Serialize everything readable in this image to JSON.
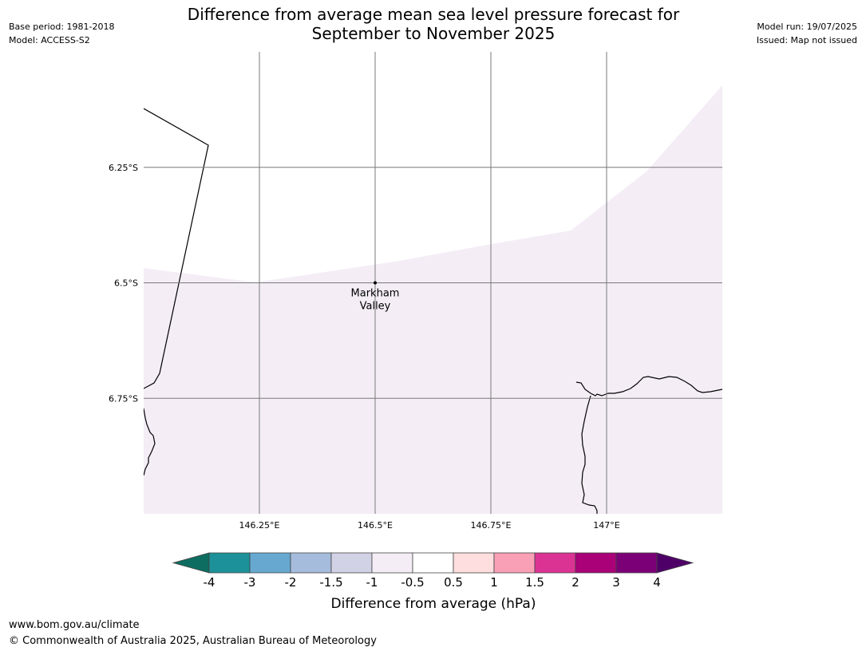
{
  "header": {
    "title_line1": "Difference from average mean sea level pressure forecast for",
    "title_line2": "September to November 2025",
    "base_period": "Base period: 1981-2018",
    "model": "Model: ACCESS-S2",
    "model_run": "Model run: 19/07/2025",
    "issued": "Issued: Map not issued"
  },
  "map": {
    "lat_labels": [
      "6.25°S",
      "6.5°S",
      "6.75°S"
    ],
    "lon_labels": [
      "146.25°E",
      "146.5°E",
      "146.75°E",
      "147°E"
    ],
    "lat_values": [
      -6.25,
      -6.5,
      -6.75
    ],
    "lon_values": [
      146.25,
      146.5,
      146.75,
      147.0
    ],
    "extent": {
      "lon_min": 146.0,
      "lon_max": 147.25,
      "lat_min": -7.0,
      "lat_max": -6.0
    },
    "location": {
      "name_line1": "Markham",
      "name_line2": "Valley",
      "lon": 146.5,
      "lat": -6.5
    },
    "fill_color": "#f4edf6",
    "fill_category": "-1 to -0.5"
  },
  "colorbar": {
    "label": "Difference from average (hPa)",
    "ticks": [
      "-4",
      "-3",
      "-2",
      "-1.5",
      "-1",
      "-0.5",
      "0.5",
      "1",
      "1.5",
      "2",
      "3",
      "4"
    ],
    "low_extend_color": "#0d6d60",
    "high_extend_color": "#4f0068",
    "colors": [
      "#1c9199",
      "#66a8d0",
      "#a6bcdc",
      "#d2d2e6",
      "#f4edf6",
      "#ffffff",
      "#fedede",
      "#f9a0b6",
      "#db3394",
      "#aa0078",
      "#7b0077"
    ]
  },
  "footer": {
    "url": "www.bom.gov.au/climate",
    "copyright": "© Commonwealth of Australia 2025, Australian Bureau of Meteorology"
  }
}
